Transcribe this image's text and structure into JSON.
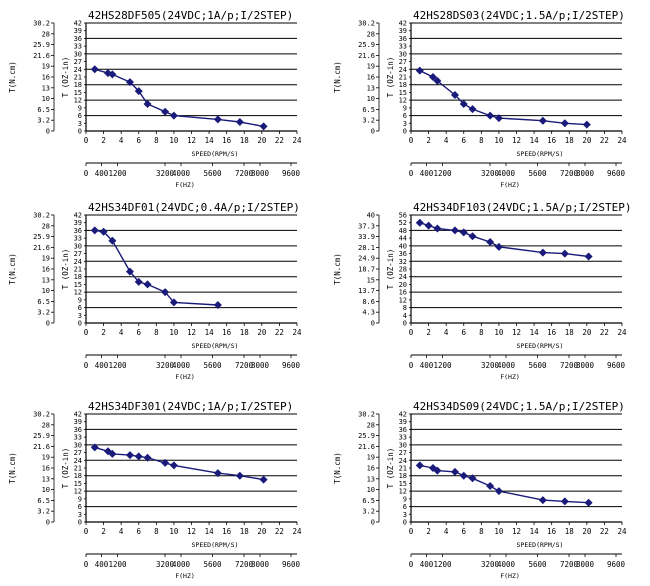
{
  "chart_data": [
    {
      "type": "line",
      "title": "42HS28DF505(24VDC;1A/p;I/2STEP)",
      "xlabel": "SPEED(RPM/S)",
      "x2label": "F(HZ)",
      "ylabel_left": "T(N.cm)",
      "ylabel_right": "T (OZ-in)",
      "xlim": [
        0,
        24
      ],
      "x_ticks": [
        "0",
        "2",
        "4",
        "6",
        "8",
        "10",
        "12",
        "14",
        "16",
        "18",
        "20",
        "22",
        "24"
      ],
      "freq_ticks": [
        "0",
        "400",
        "1200",
        "3200",
        "4000",
        "5600",
        "7200",
        "8000",
        "9600"
      ],
      "ylim": [
        0,
        42
      ],
      "y_ticks": [
        "0",
        "3",
        "6",
        "9",
        "12",
        "15",
        "18",
        "21",
        "24",
        "27",
        "30",
        "33",
        "36",
        "39",
        "42"
      ],
      "y2_ticks": [
        "0",
        "3.2",
        "6.5",
        "10",
        "13",
        "16",
        "19",
        "21.6",
        "25.9",
        "28",
        "30.2"
      ],
      "series": [
        {
          "x": [
            1,
            2.5,
            3,
            5,
            6,
            7,
            9,
            10,
            15,
            17.5,
            20.2
          ],
          "y": [
            24,
            22.5,
            22,
            19,
            15.5,
            10.5,
            7.5,
            6,
            4.5,
            3.5,
            1.8
          ]
        }
      ]
    },
    {
      "type": "line",
      "title": "42HS28DS03(24VDC;1.5A/p;I/2STEP)",
      "xlabel": "SPEED(RPM/S)",
      "x2label": "F(HZ)",
      "ylabel_left": "T(N.cm)",
      "ylabel_right": "T (OZ-in)",
      "xlim": [
        0,
        24
      ],
      "x_ticks": [
        "0",
        "2",
        "4",
        "6",
        "8",
        "10",
        "12",
        "14",
        "16",
        "18",
        "20",
        "22",
        "24"
      ],
      "freq_ticks": [
        "0",
        "400",
        "1200",
        "3200",
        "4000",
        "5600",
        "7200",
        "8000",
        "9600"
      ],
      "ylim": [
        0,
        42
      ],
      "y_ticks": [
        "0",
        "3",
        "6",
        "9",
        "12",
        "15",
        "18",
        "21",
        "24",
        "27",
        "30",
        "33",
        "36",
        "39",
        "42"
      ],
      "y2_ticks": [
        "0",
        "3.2",
        "6.5",
        "10",
        "13",
        "16",
        "19",
        "21.6",
        "25.9",
        "28",
        "30.2"
      ],
      "series": [
        {
          "x": [
            1,
            2.5,
            3,
            5,
            6,
            7,
            9,
            10,
            15,
            17.5,
            20
          ],
          "y": [
            23.5,
            21,
            19.5,
            14,
            10.5,
            8.5,
            6,
            5,
            4,
            3,
            2.5
          ]
        }
      ]
    },
    {
      "type": "line",
      "title": "42HS34DF01(24VDC;0.4A/p;I/2STEP)",
      "xlabel": "SPEED(RPM/S)",
      "x2label": "F(HZ)",
      "ylabel_left": "T(N.cm)",
      "ylabel_right": "T (OZ-in)",
      "xlim": [
        0,
        24
      ],
      "x_ticks": [
        "0",
        "2",
        "4",
        "6",
        "8",
        "10",
        "12",
        "14",
        "16",
        "18",
        "20",
        "22",
        "24"
      ],
      "freq_ticks": [
        "0",
        "400",
        "1200",
        "3200",
        "4000",
        "5600",
        "7200",
        "8000",
        "9600"
      ],
      "ylim": [
        0,
        42
      ],
      "y_ticks": [
        "0",
        "3",
        "6",
        "9",
        "12",
        "15",
        "18",
        "21",
        "24",
        "27",
        "30",
        "33",
        "36",
        "39",
        "42"
      ],
      "y2_ticks": [
        "0",
        "3.2",
        "6.5",
        "10",
        "13",
        "16",
        "19",
        "21.6",
        "25.9",
        "28",
        "30.2"
      ],
      "series": [
        {
          "x": [
            1,
            2,
            3,
            5,
            6,
            7,
            9,
            10,
            15
          ],
          "y": [
            36,
            35.5,
            32,
            20,
            16,
            15,
            12,
            8,
            7
          ]
        }
      ]
    },
    {
      "type": "line",
      "title": "42HS34DF103(24VDC;1.5A/p;I/2STEP)",
      "xlabel": "SPEED(RPM/S)",
      "x2label": "F(HZ)",
      "ylabel_left": "T(N.cm)",
      "ylabel_right": "T (OZ-in)",
      "xlim": [
        0,
        24
      ],
      "x_ticks": [
        "0",
        "2",
        "4",
        "6",
        "8",
        "10",
        "12",
        "14",
        "16",
        "18",
        "20",
        "22",
        "24"
      ],
      "freq_ticks": [
        "0",
        "400",
        "1200",
        "3200",
        "4000",
        "5600",
        "7200",
        "8000",
        "9600"
      ],
      "ylim": [
        0,
        56
      ],
      "y_ticks": [
        "0",
        "4",
        "8",
        "12",
        "16",
        "20",
        "24",
        "28",
        "32",
        "36",
        "40",
        "44",
        "48",
        "52",
        "56"
      ],
      "y2_ticks": [
        "0",
        "4.3",
        "8.6",
        "13.7",
        "15",
        "18.7",
        "24.9",
        "28.1",
        "33.9",
        "37.3",
        "40"
      ],
      "series": [
        {
          "x": [
            1,
            2,
            3,
            5,
            6,
            7,
            9,
            10,
            15,
            17.5,
            20.2
          ],
          "y": [
            52,
            50.5,
            49,
            48,
            47,
            45,
            42,
            39.5,
            36.5,
            36,
            34.5
          ]
        }
      ]
    },
    {
      "type": "line",
      "title": "42HS34DF301(24VDC;1A/p;I/2STEP)",
      "xlabel": "SPEED(RPM/S)",
      "x2label": "F(HZ)",
      "ylabel_left": "T(N.cm)",
      "ylabel_right": "T (OZ-in)",
      "xlim": [
        0,
        24
      ],
      "x_ticks": [
        "0",
        "2",
        "4",
        "6",
        "8",
        "10",
        "12",
        "14",
        "16",
        "18",
        "20",
        "22",
        "24"
      ],
      "freq_ticks": [
        "0",
        "400",
        "1200",
        "3200",
        "4000",
        "5600",
        "7200",
        "8000",
        "9600"
      ],
      "ylim": [
        0,
        42
      ],
      "y_ticks": [
        "0",
        "3",
        "6",
        "9",
        "12",
        "15",
        "18",
        "21",
        "24",
        "27",
        "30",
        "33",
        "36",
        "39",
        "42"
      ],
      "y2_ticks": [
        "0",
        "3.2",
        "6.5",
        "10",
        "13",
        "16",
        "19",
        "21.6",
        "25.9",
        "28",
        "30.2"
      ],
      "series": [
        {
          "x": [
            1,
            2.5,
            3,
            5,
            6,
            7,
            9,
            10,
            15,
            17.5,
            20.2
          ],
          "y": [
            29,
            27.5,
            26.5,
            26,
            25.5,
            25,
            23,
            22,
            19,
            18,
            16.5
          ]
        }
      ]
    },
    {
      "type": "line",
      "title": "42HS34DS09(24VDC;1.5A/p;I/2STEP)",
      "xlabel": "SPEED(RPM/S)",
      "x2label": "F(HZ)",
      "ylabel_left": "T(N.cm)",
      "ylabel_right": "T (OZ-in)",
      "xlim": [
        0,
        24
      ],
      "x_ticks": [
        "0",
        "2",
        "4",
        "6",
        "8",
        "10",
        "12",
        "14",
        "16",
        "18",
        "20",
        "22",
        "24"
      ],
      "freq_ticks": [
        "0",
        "400",
        "1200",
        "3200",
        "4000",
        "5600",
        "7200",
        "8000",
        "9600"
      ],
      "ylim": [
        0,
        42
      ],
      "y_ticks": [
        "0",
        "3",
        "6",
        "9",
        "12",
        "15",
        "18",
        "21",
        "24",
        "27",
        "30",
        "33",
        "36",
        "39",
        "42"
      ],
      "y2_ticks": [
        "0",
        "3.2",
        "6.5",
        "10",
        "13",
        "16",
        "19",
        "21.6",
        "25.9",
        "28",
        "30.2"
      ],
      "series": [
        {
          "x": [
            1,
            2.5,
            3,
            5,
            6,
            7,
            9,
            10,
            15,
            17.5,
            20.2
          ],
          "y": [
            22,
            21,
            20,
            19.5,
            18,
            17,
            14,
            12,
            8.5,
            8,
            7.5
          ]
        }
      ]
    }
  ]
}
